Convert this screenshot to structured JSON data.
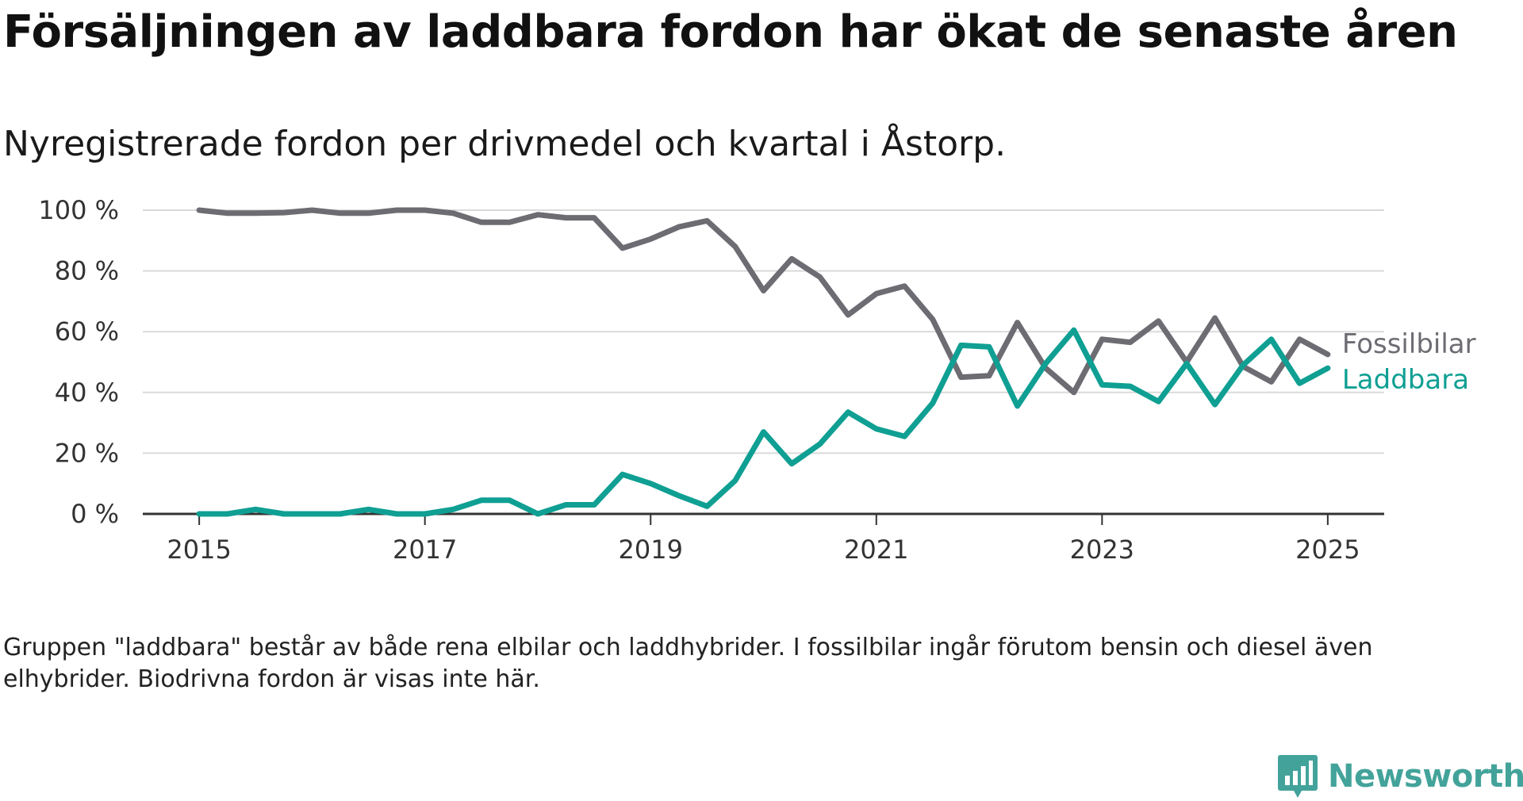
{
  "title": "Försäljningen av laddbara fordon har ökat de senaste åren",
  "subtitle": "Nyregistrerade fordon per drivmedel och kvartal i Åstorp.",
  "note": "Gruppen \"laddbara\" består av både rena elbilar och laddhybrider. I fossilbilar ingår förutom bensin och diesel även elhybrider. Biodrivna fordon är visas inte här.",
  "brand": {
    "name": "Newsworthy",
    "color": "#43a39a"
  },
  "chart_data": {
    "type": "line",
    "title": "Försäljningen av laddbara fordon har ökat de senaste åren",
    "subtitle": "Nyregistrerade fordon per drivmedel och kvartal i Åstorp.",
    "xlabel": "",
    "ylabel": "",
    "xlim": [
      2014.5,
      2025.5
    ],
    "ylim": [
      0,
      100
    ],
    "x_ticks": [
      2015,
      2017,
      2019,
      2021,
      2023,
      2025
    ],
    "x_tick_labels": [
      "2015",
      "2017",
      "2019",
      "2021",
      "2023",
      "2025"
    ],
    "y_ticks": [
      0,
      20,
      40,
      60,
      80,
      100
    ],
    "y_tick_labels": [
      "0 %",
      "20 %",
      "40 %",
      "60 %",
      "80 %",
      "100 %"
    ],
    "grid": "horizontal",
    "legend": "direct labels at line ends",
    "x": [
      2015,
      2015.25,
      2015.5,
      2015.75,
      2016,
      2016.25,
      2016.5,
      2016.75,
      2017,
      2017.25,
      2017.5,
      2017.75,
      2018,
      2018.25,
      2018.5,
      2018.75,
      2019,
      2019.25,
      2019.5,
      2019.75,
      2020,
      2020.25,
      2020.5,
      2020.75,
      2021,
      2021.25,
      2021.5,
      2021.75,
      2022,
      2022.25,
      2022.5,
      2022.75,
      2023,
      2023.25,
      2023.5,
      2023.75,
      2024,
      2024.25,
      2024.5,
      2024.75,
      2025
    ],
    "series": [
      {
        "name": "Fossilbilar",
        "color": "#6d6c73",
        "values": [
          100,
          99,
          99,
          99.2,
          100,
          99,
          99,
          100,
          100,
          99,
          96,
          96,
          98.5,
          97.5,
          97.5,
          87.5,
          90.5,
          94.5,
          96.5,
          88,
          73.5,
          84,
          78,
          65.5,
          72.5,
          75,
          64,
          45,
          45.5,
          63,
          48,
          40,
          57.5,
          56.5,
          63.5,
          50,
          64.5,
          48.5,
          43.5,
          57.5,
          52.5
        ]
      },
      {
        "name": "Laddbara",
        "color": "#0f9f93",
        "values": [
          0,
          0,
          1.5,
          0,
          0,
          0,
          1.5,
          0,
          0,
          1.5,
          4.5,
          4.5,
          0,
          3,
          3,
          13,
          10,
          6,
          2.5,
          11,
          27,
          16.5,
          23,
          33.5,
          28,
          25.5,
          36.5,
          55.5,
          55,
          35.5,
          49.5,
          60.5,
          42.5,
          42,
          37,
          49.5,
          36,
          49,
          57.5,
          43,
          48
        ]
      }
    ]
  }
}
